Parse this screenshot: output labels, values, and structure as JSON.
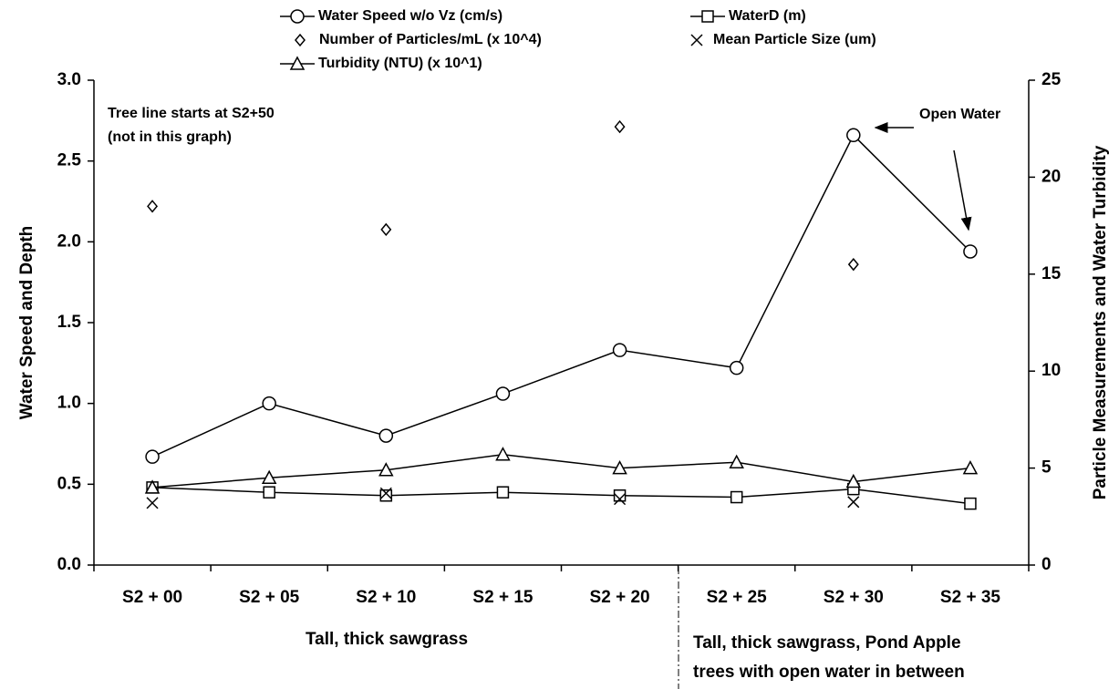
{
  "chart_data": {
    "type": "line",
    "categories": [
      "S2 + 00",
      "S2 + 05",
      "S2 + 10",
      "S2 + 15",
      "S2 + 20",
      "S2 + 25",
      "S2 + 30",
      "S2 + 35"
    ],
    "ylabel": "Water Speed and Depth",
    "y2label": "Particle Measurements and Water Turbidity",
    "ylim": [
      0,
      3
    ],
    "yticks": [
      {
        "value": 0,
        "label": "0.0"
      },
      0.5,
      {
        "value": 1,
        "label": "1.0"
      },
      1.5,
      {
        "value": 2,
        "label": "2.0"
      },
      2.5,
      {
        "value": 3,
        "label": "3.0"
      }
    ],
    "y2lim": [
      0,
      25
    ],
    "y2ticks": [
      0,
      5,
      10,
      15,
      20,
      25
    ],
    "series": [
      {
        "name": "Water Speed w/o Vz (cm/s)",
        "color": "#000000",
        "marker": "circle",
        "line": true,
        "values": [
          0.67,
          1.0,
          0.8,
          1.06,
          1.33,
          1.22,
          2.66,
          1.94
        ]
      },
      {
        "name": "WaterD (m)",
        "color": "#000000",
        "marker": "square",
        "line": true,
        "values": [
          0.48,
          0.45,
          0.43,
          0.45,
          0.43,
          0.42,
          0.47,
          0.38
        ]
      },
      {
        "name": "Number of Particles/mL (x 10^4)",
        "color": "#000000",
        "marker": "diamond",
        "line": false,
        "axis": "y2",
        "values": [
          18.5,
          null,
          17.3,
          null,
          22.6,
          null,
          15.5,
          null
        ]
      },
      {
        "name": "Mean Particle Size (um)",
        "color": "#000000",
        "marker": "cross",
        "line": false,
        "axis": "y2",
        "values": [
          3.2,
          null,
          3.7,
          null,
          3.4,
          null,
          3.25,
          null
        ]
      },
      {
        "name": "Turbidity (NTU) (x 10^1)",
        "color": "#000000",
        "marker": "triangle",
        "line": true,
        "axis": "y2",
        "values": [
          4.0,
          4.5,
          4.9,
          5.7,
          5.0,
          5.3,
          4.3,
          5.0
        ]
      }
    ],
    "annotations": [
      "Tree line starts at S2+50",
      "(not in this graph)",
      "Open Water"
    ],
    "group_labels": [
      "Tall, thick sawgrass",
      "Tall, thick sawgrass, Pond Apple",
      "trees with open water in between"
    ]
  }
}
